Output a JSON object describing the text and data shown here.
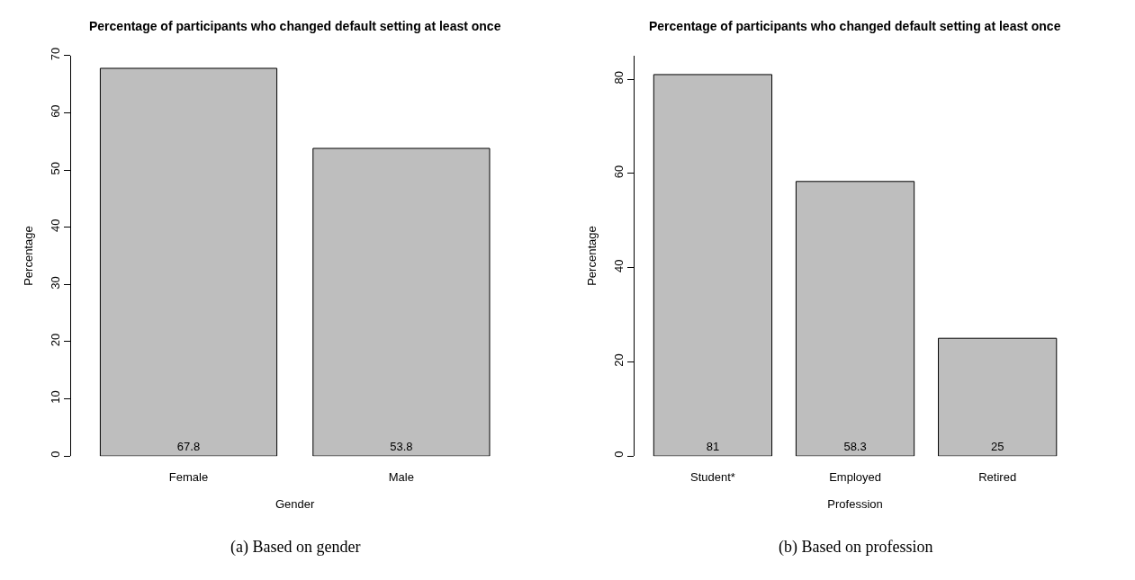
{
  "chart_data": [
    {
      "type": "bar",
      "title": "Percentage of participants who changed default setting at least once",
      "xlabel": "Gender",
      "ylabel": "Percentage",
      "categories": [
        "Female",
        "Male"
      ],
      "values": [
        67.8,
        53.8
      ],
      "color": "#bebebe",
      "ylim": [
        0,
        70
      ],
      "yticks": [
        0,
        10,
        20,
        30,
        40,
        50,
        60,
        70
      ],
      "data_labels": true,
      "annotations": [
        "(a) Based on gender"
      ]
    },
    {
      "type": "bar",
      "title": "Percentage of participants who changed default setting at least once",
      "xlabel": "Profession",
      "ylabel": "Percentage",
      "categories": [
        "Student*",
        "Employed",
        "Retired"
      ],
      "values": [
        81,
        58.3,
        25
      ],
      "color": "#bebebe",
      "ylim": [
        0,
        85
      ],
      "yticks": [
        0,
        20,
        40,
        60,
        80
      ],
      "data_labels": true,
      "annotations": [
        "(b) Based on profession"
      ]
    }
  ]
}
